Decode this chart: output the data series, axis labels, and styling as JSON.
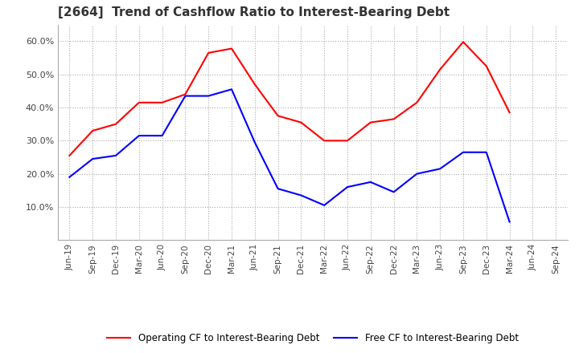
{
  "title": "[2664]  Trend of Cashflow Ratio to Interest-Bearing Debt",
  "x_labels": [
    "Jun-19",
    "Sep-19",
    "Dec-19",
    "Mar-20",
    "Jun-20",
    "Sep-20",
    "Dec-20",
    "Mar-21",
    "Jun-21",
    "Sep-21",
    "Dec-21",
    "Mar-22",
    "Jun-22",
    "Sep-22",
    "Dec-22",
    "Mar-23",
    "Jun-23",
    "Sep-23",
    "Dec-23",
    "Mar-24",
    "Jun-24",
    "Sep-24"
  ],
  "operating_cf": [
    0.255,
    0.33,
    0.35,
    0.415,
    0.415,
    0.44,
    0.565,
    0.578,
    0.47,
    0.375,
    0.355,
    0.3,
    0.3,
    0.355,
    0.365,
    0.415,
    0.515,
    0.598,
    0.525,
    0.385,
    null,
    null
  ],
  "free_cf": [
    0.19,
    0.245,
    0.255,
    0.315,
    0.315,
    0.435,
    0.435,
    0.455,
    0.295,
    0.155,
    0.135,
    0.105,
    0.16,
    0.175,
    0.145,
    0.2,
    0.215,
    0.265,
    0.265,
    0.055,
    null,
    null
  ],
  "ylim": [
    0.0,
    0.65
  ],
  "yticks": [
    0.1,
    0.2,
    0.3,
    0.4,
    0.5,
    0.6
  ],
  "operating_color": "#ff0000",
  "free_color": "#0000ff",
  "title_fontsize": 11,
  "legend_labels": [
    "Operating CF to Interest-Bearing Debt",
    "Free CF to Interest-Bearing Debt"
  ],
  "background_color": "#ffffff"
}
